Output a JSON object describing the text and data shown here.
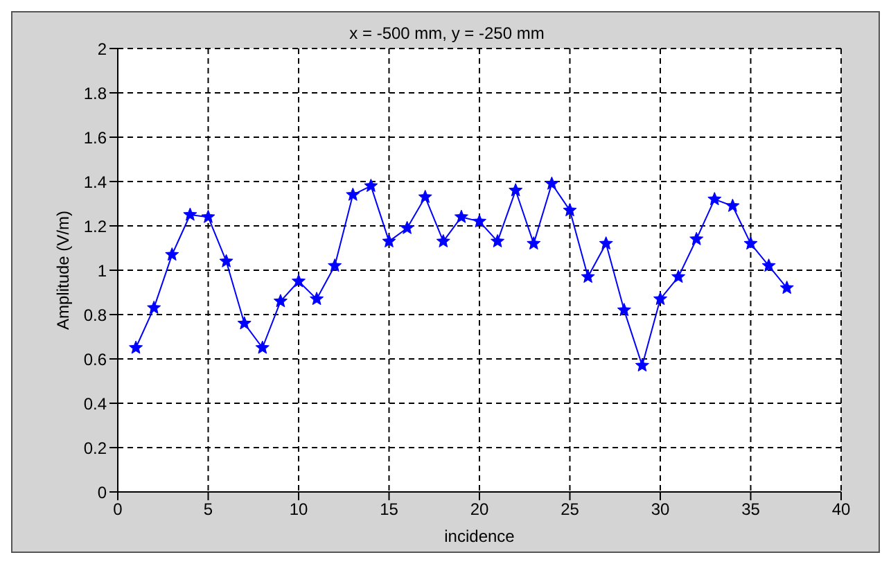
{
  "chart_data": {
    "type": "line",
    "title": "x = -500 mm, y = -250 mm",
    "xlabel": "incidence",
    "ylabel": "Amplitude (V/m)",
    "x": [
      1,
      2,
      3,
      4,
      5,
      6,
      7,
      8,
      9,
      10,
      11,
      12,
      13,
      14,
      15,
      16,
      17,
      18,
      19,
      20,
      21,
      22,
      23,
      24,
      25,
      26,
      27,
      28,
      29,
      30,
      31,
      32,
      33,
      34,
      35,
      36,
      37
    ],
    "series": [
      {
        "color": "#0000ff",
        "values": [
          0.65,
          0.83,
          1.07,
          1.25,
          1.24,
          1.04,
          0.76,
          0.65,
          0.86,
          0.95,
          0.87,
          1.02,
          1.34,
          1.38,
          1.13,
          1.19,
          1.33,
          1.13,
          1.24,
          1.22,
          1.13,
          1.36,
          1.12,
          1.39,
          1.27,
          0.97,
          1.12,
          0.82,
          0.57,
          0.87,
          0.97,
          1.14,
          1.32,
          1.29,
          1.12,
          1.02,
          0.92
        ]
      }
    ],
    "xlim": [
      0,
      40
    ],
    "xticks": [
      0,
      5,
      10,
      15,
      20,
      25,
      30,
      35,
      40
    ],
    "ylim": [
      0,
      2
    ],
    "yticks": [
      0,
      0.2,
      0.4,
      0.6,
      0.8,
      1,
      1.2,
      1.4,
      1.6,
      1.8,
      2
    ],
    "grid": true,
    "marker": "star",
    "line_style": "solid"
  }
}
